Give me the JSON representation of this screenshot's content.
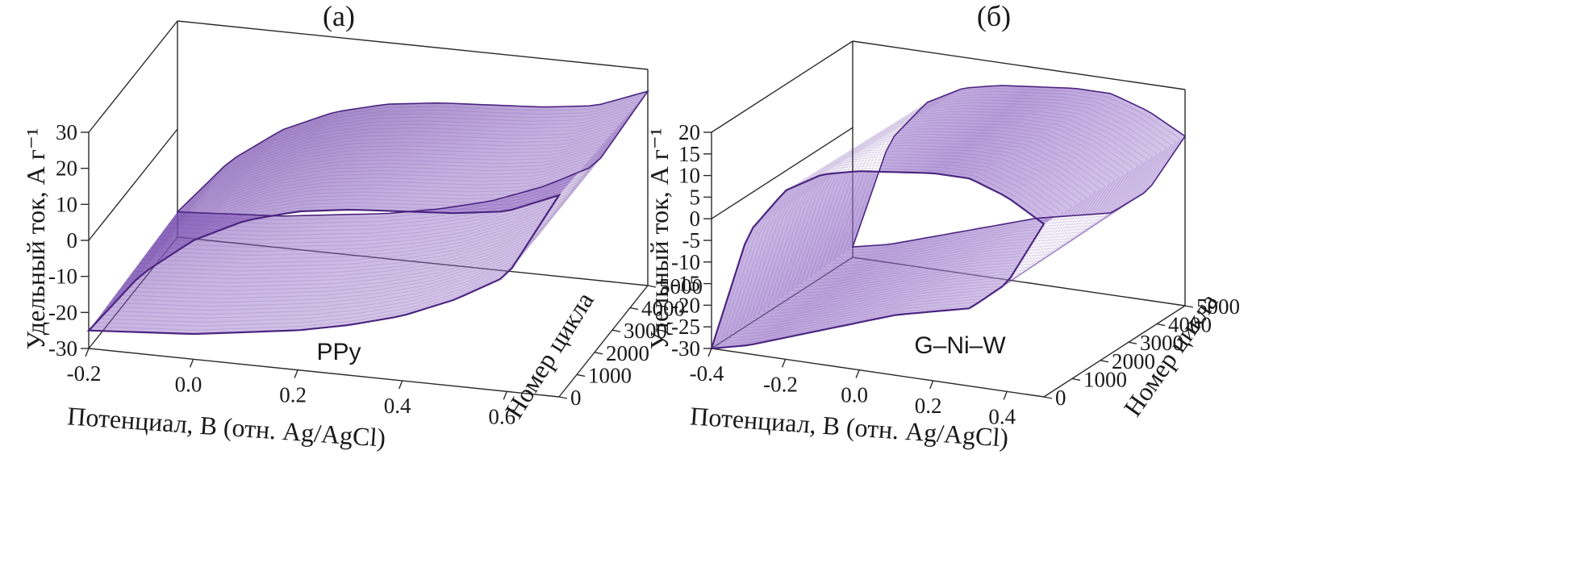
{
  "chart_data": [
    {
      "type": "surface",
      "panel_label": "(a)",
      "sample_label": "PPy",
      "xlabel": "Потенциал, В (отн. Ag/AgCl)",
      "ylabel": "Номер цикла",
      "zlabel": "Удельный ток, А г⁻¹",
      "x_ticks": [
        "-0.2",
        "0.0",
        "0.2",
        "0.4",
        "0.6"
      ],
      "x_tick_values": [
        -0.2,
        0.0,
        0.2,
        0.4,
        0.6
      ],
      "y_ticks": [
        "0",
        "1000",
        "2000",
        "3000",
        "4000",
        "5000"
      ],
      "y_tick_values": [
        0,
        1000,
        2000,
        3000,
        4000,
        5000
      ],
      "z_ticks": [
        "-30",
        "-20",
        "-10",
        "0",
        "10",
        "20",
        "30"
      ],
      "z_tick_values": [
        -30,
        -20,
        -10,
        0,
        10,
        20,
        30
      ],
      "xlim": [
        -0.2,
        0.7
      ],
      "ylim": [
        0,
        5000
      ],
      "zlim": [
        -30,
        30
      ],
      "color": "#6b3fa0",
      "upper_branch": {
        "x": [
          -0.2,
          -0.1,
          0.0,
          0.1,
          0.2,
          0.3,
          0.4,
          0.5,
          0.6,
          0.7
        ],
        "current": [
          -25,
          -8,
          3,
          10,
          14,
          16,
          17,
          18,
          20,
          26
        ]
      },
      "lower_branch": {
        "x": [
          -0.2,
          -0.1,
          0.0,
          0.1,
          0.2,
          0.3,
          0.4,
          0.5,
          0.6,
          0.7
        ],
        "current": [
          -25,
          -24,
          -23,
          -21,
          -19,
          -16,
          -12,
          -6,
          2,
          26
        ]
      }
    },
    {
      "type": "surface",
      "panel_label": "(б)",
      "sample_label": "G–Ni–W",
      "xlabel": "Потенциал, В (отн. Ag/AgCl)",
      "ylabel": "Номер цикла",
      "zlabel": "Удельный ток, А г⁻¹",
      "x_ticks": [
        "-0.4",
        "-0.2",
        "0.0",
        "0.2",
        "0.4"
      ],
      "x_tick_values": [
        -0.4,
        -0.2,
        0.0,
        0.2,
        0.4
      ],
      "y_ticks": [
        "0",
        "1000",
        "2000",
        "3000",
        "4000",
        "5000"
      ],
      "y_tick_values": [
        0,
        1000,
        2000,
        3000,
        4000,
        5000
      ],
      "z_ticks": [
        "-30",
        "-25",
        "-20",
        "-15",
        "-10",
        "-5",
        "0",
        "5",
        "10",
        "15",
        "20"
      ],
      "z_tick_values": [
        -30,
        -25,
        -20,
        -15,
        -10,
        -5,
        0,
        5,
        10,
        15,
        20
      ],
      "xlim": [
        -0.4,
        0.5
      ],
      "ylim": [
        0,
        5000
      ],
      "zlim": [
        -30,
        20
      ],
      "color": "#6b3fa0",
      "upper_branch": {
        "x": [
          -0.4,
          -0.3,
          -0.2,
          -0.1,
          0.0,
          0.1,
          0.2,
          0.3,
          0.4,
          0.5
        ],
        "current": [
          -30,
          -2,
          9,
          14,
          16,
          17,
          18,
          18,
          15,
          10
        ]
      },
      "lower_branch": {
        "x": [
          -0.4,
          -0.3,
          -0.2,
          -0.1,
          0.0,
          0.1,
          0.2,
          0.3,
          0.4,
          0.5
        ],
        "current": [
          -30,
          -28,
          -25,
          -22,
          -19,
          -16,
          -14,
          -12,
          -5,
          10
        ]
      }
    }
  ]
}
